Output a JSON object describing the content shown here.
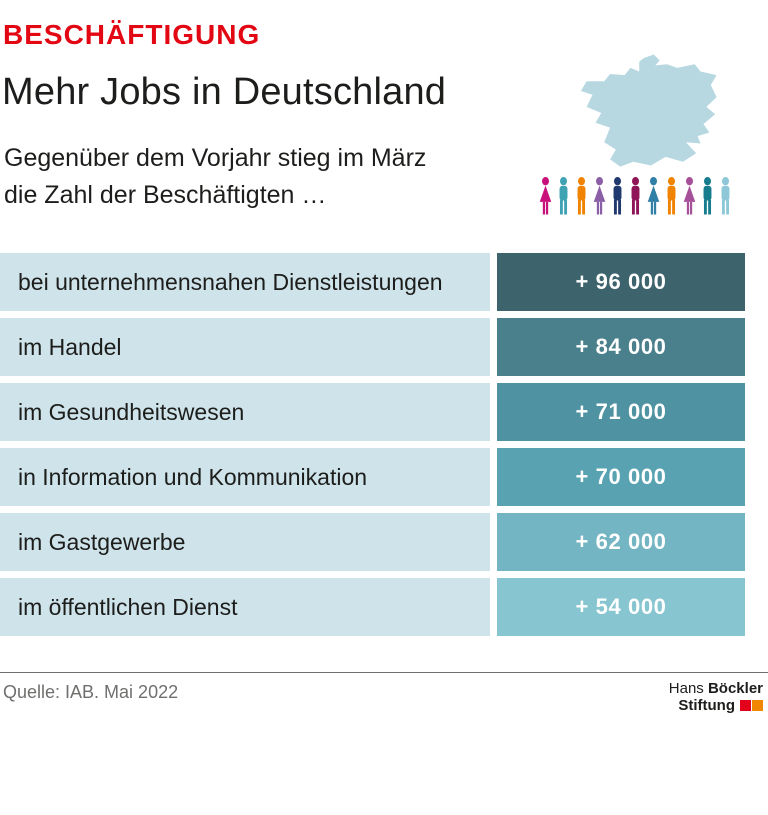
{
  "header": {
    "kicker": "BESCHÄFTIGUNG",
    "title": "Mehr Jobs in Deutschland",
    "subtitle_line1": "Gegenüber dem Vorjahr stieg im März",
    "subtitle_line2": "die Zahl der Beschäftigten …"
  },
  "rows": [
    {
      "label": "bei unternehmensnahen Dienstleistungen",
      "value": "+ 96 000",
      "color": "#3d636d"
    },
    {
      "label": "im Handel",
      "value": "+ 84 000",
      "color": "#4a7f8c"
    },
    {
      "label": "im Gesundheitswesen",
      "value": "+ 71 000",
      "color": "#4f93a2"
    },
    {
      "label": "in Information und Kommunikation",
      "value": "+ 70 000",
      "color": "#58a2b1"
    },
    {
      "label": "im Gastgewerbe",
      "value": "+ 62 000",
      "color": "#73b5c2"
    },
    {
      "label": "im öffentlichen Dienst",
      "value": "+ 54 000",
      "color": "#87c5d1"
    }
  ],
  "footer": {
    "source": "Quelle: IAB. Mai 2022",
    "logo": {
      "line1_a": "Hans",
      "line1_b": "Böckler",
      "line2": "Stiftung",
      "square_colors": [
        "#e2001a",
        "#f18700"
      ]
    }
  },
  "colors": {
    "kicker": "#e30613",
    "label_bg": "#cee4ea",
    "text": "#1d1d1b",
    "muted_text": "#6f6f6e"
  },
  "graphic": {
    "map_color": "#b7d8e1",
    "people": [
      {
        "color": "#c9117c",
        "shape": "female"
      },
      {
        "color": "#3fa3b3",
        "shape": "male"
      },
      {
        "color": "#f08300",
        "shape": "male"
      },
      {
        "color": "#8a5fa8",
        "shape": "female"
      },
      {
        "color": "#20396f",
        "shape": "male"
      },
      {
        "color": "#8f1457",
        "shape": "male"
      },
      {
        "color": "#2f7fa6",
        "shape": "female"
      },
      {
        "color": "#f08300",
        "shape": "male"
      },
      {
        "color": "#a6509a",
        "shape": "female"
      },
      {
        "color": "#177d8e",
        "shape": "male"
      },
      {
        "color": "#8ec8d8",
        "shape": "male"
      }
    ]
  },
  "chart_data": {
    "type": "bar",
    "title": "Mehr Jobs in Deutschland",
    "subtitle": "Gegenüber dem Vorjahr stieg im März die Zahl der Beschäftigten …",
    "categories": [
      "bei unternehmensnahen Dienstleistungen",
      "im Handel",
      "im Gesundheitswesen",
      "in Information und Kommunikation",
      "im Gastgewerbe",
      "im öffentlichen Dienst"
    ],
    "values": [
      96000,
      84000,
      71000,
      70000,
      62000,
      54000
    ],
    "value_labels": [
      "+ 96 000",
      "+ 84 000",
      "+ 71 000",
      "+ 70 000",
      "+ 62 000",
      "+ 54 000"
    ],
    "source": "Quelle: IAB. Mai 2022",
    "legend_position": "none",
    "grid": false
  }
}
